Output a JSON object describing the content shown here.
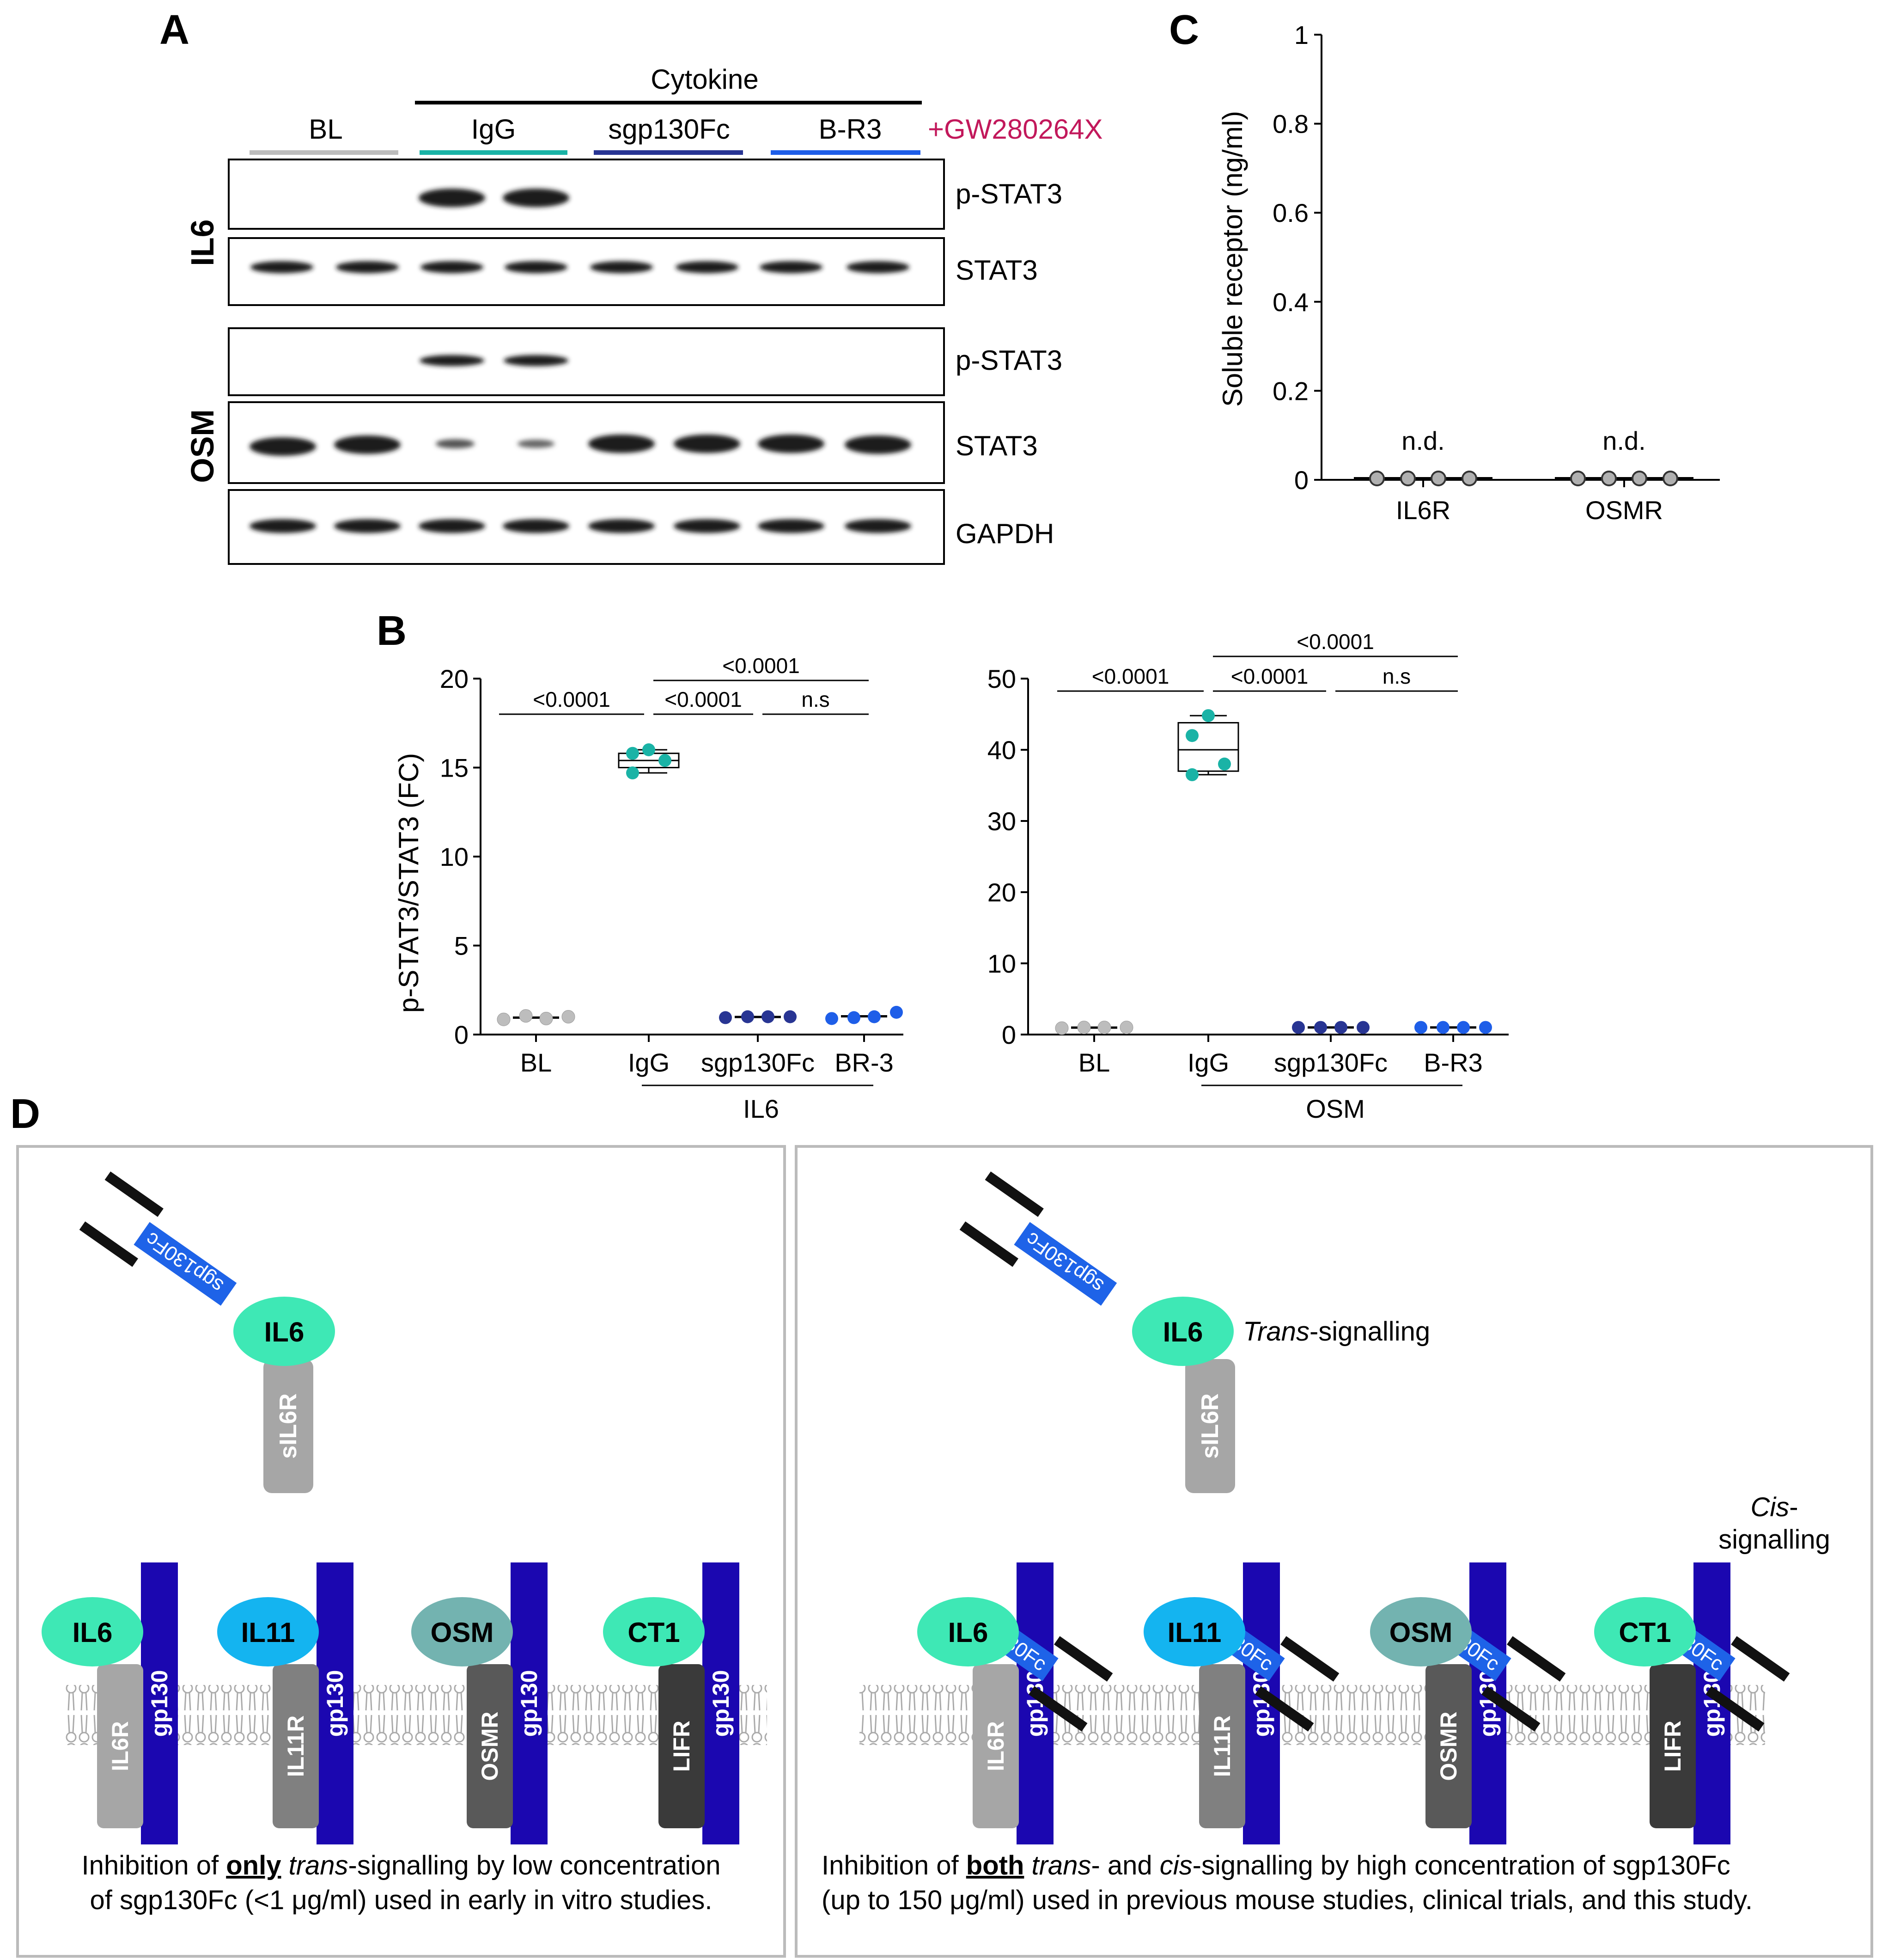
{
  "panels": {
    "A": "A",
    "B": "B",
    "C": "C",
    "D": "D"
  },
  "panelA": {
    "cytokine_label": "Cytokine",
    "groups": [
      {
        "label": "BL",
        "color": "#bdbdbd"
      },
      {
        "label": "IgG",
        "color": "#1ab3a6"
      },
      {
        "label": "sgp130Fc",
        "color": "#283593"
      },
      {
        "label": "B-R3",
        "color": "#1e5ee8"
      }
    ],
    "inhibitor_label": "+GW280264X",
    "inhibitor_color": "#c2185b",
    "row_groups": [
      "IL6",
      "OSM"
    ],
    "blot_labels": [
      "p-STAT3",
      "STAT3",
      "p-STAT3",
      "STAT3",
      "GAPDH"
    ]
  },
  "panelB": {
    "ylabel": "p-STAT3/STAT3 (FC)",
    "left": {
      "cytokine": "IL6",
      "categories": [
        "BL",
        "IgG",
        "sgp130Fc",
        "BR-3"
      ],
      "yticks": [
        "0",
        "5",
        "10",
        "15",
        "20"
      ],
      "ylim": [
        0,
        20
      ],
      "sig": [
        "<0.0001",
        "<0.0001",
        "n.s",
        "<0.0001"
      ]
    },
    "right": {
      "cytokine": "OSM",
      "categories": [
        "BL",
        "IgG",
        "sgp130Fc",
        "B-R3"
      ],
      "yticks": [
        "0",
        "10",
        "20",
        "30",
        "40",
        "50"
      ],
      "ylim": [
        0,
        50
      ],
      "sig": [
        "<0.0001",
        "<0.0001",
        "n.s",
        "<0.0001"
      ]
    }
  },
  "chart_data": [
    {
      "type": "scatter",
      "title": "IL6",
      "ylabel": "p-STAT3/STAT3 (FC)",
      "categories": [
        "BL",
        "IgG",
        "sgp130Fc",
        "BR-3"
      ],
      "ylim": [
        0,
        20
      ],
      "series": [
        {
          "name": "BL",
          "values": [
            0.85,
            1.05,
            0.9,
            1.0
          ]
        },
        {
          "name": "IgG",
          "values": [
            14.7,
            15.4,
            15.8,
            16.0
          ],
          "box": {
            "min": 14.7,
            "q1": 15.0,
            "median": 15.4,
            "q3": 15.8,
            "max": 16.0
          }
        },
        {
          "name": "sgp130Fc",
          "values": [
            0.95,
            1.0,
            1.0,
            1.0
          ]
        },
        {
          "name": "BR-3",
          "values": [
            0.9,
            0.95,
            1.0,
            1.25
          ]
        }
      ]
    },
    {
      "type": "scatter",
      "title": "OSM",
      "ylabel": "p-STAT3/STAT3 (FC)",
      "categories": [
        "BL",
        "IgG",
        "sgp130Fc",
        "B-R3"
      ],
      "ylim": [
        0,
        50
      ],
      "series": [
        {
          "name": "BL",
          "values": [
            0.9,
            1.0,
            1.0,
            1.0
          ]
        },
        {
          "name": "IgG",
          "values": [
            36.5,
            38.0,
            42.0,
            44.8
          ],
          "box": {
            "min": 36.5,
            "q1": 37.0,
            "median": 40.0,
            "q3": 43.8,
            "max": 44.8
          }
        },
        {
          "name": "sgp130Fc",
          "values": [
            1.0,
            1.0,
            1.0,
            1.0
          ]
        },
        {
          "name": "B-R3",
          "values": [
            1.0,
            1.0,
            1.0,
            1.0
          ]
        }
      ]
    },
    {
      "type": "scatter",
      "title": "Soluble receptor",
      "ylabel": "Soluble receptor (ng/ml)",
      "categories": [
        "IL6R",
        "OSMR"
      ],
      "ylim": [
        0,
        1
      ],
      "yticks": [
        "0",
        "0.2",
        "0.4",
        "0.6",
        "0.8",
        "1"
      ],
      "series": [
        {
          "name": "IL6R",
          "values": [
            0,
            0,
            0,
            0
          ]
        },
        {
          "name": "OSMR",
          "values": [
            0,
            0,
            0,
            0
          ]
        }
      ],
      "annotations": [
        "n.d.",
        "n.d."
      ]
    }
  ],
  "panelD": {
    "left_caption_1": "Inhibition of ",
    "left_caption_bold": "only",
    "left_caption_2": " trans",
    "left_caption_3": "-signalling by low concentration",
    "left_caption_line2": "of sgp130Fc (<1 μg/ml) used in early in vitro studies.",
    "right_caption_1": "Inhibition of ",
    "right_caption_bold": "both",
    "right_caption_2": " trans",
    "right_caption_3": "- and ",
    "right_caption_4": "cis",
    "right_caption_5": "-signalling by high concentration of sgp130Fc",
    "right_caption_line2": "(up to 150 μg/ml) used in previous mouse studies, clinical trials, and this study.",
    "trans_italic": "Trans",
    "trans_rest": "-signalling",
    "cis_italic": "Cis",
    "cis_line2": "signalling",
    "sgp130fc": "sgp130Fc",
    "sil6r": "sIL6R",
    "gp130": "gp130",
    "ligands": [
      "IL6",
      "IL11",
      "OSM",
      "CT1"
    ],
    "receptors": [
      "IL6R",
      "IL11R",
      "OSMR",
      "LIFR"
    ],
    "ligand_colors": [
      "#3ee8b5",
      "#14b4f0",
      "#73b3b0",
      "#3ee8b5"
    ],
    "receptor_colors": [
      "#a6a6a6",
      "#808080",
      "#595959",
      "#3a3a3a"
    ]
  }
}
